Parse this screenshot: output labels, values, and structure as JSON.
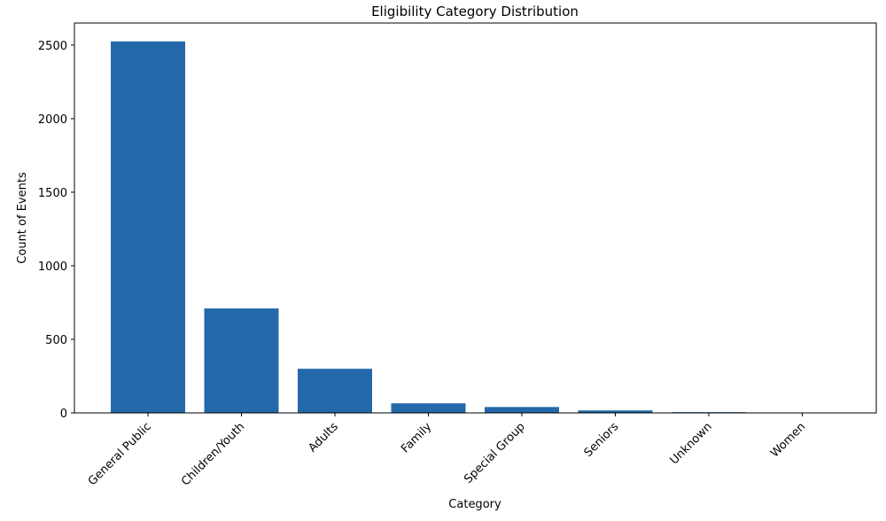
{
  "chart_data": {
    "type": "bar",
    "title": "Eligibility Category Distribution",
    "xlabel": "Category",
    "ylabel": "Count of Events",
    "categories": [
      "General Public",
      "Children/Youth",
      "Adults",
      "Family",
      "Special Group",
      "Seniors",
      "Unknown",
      "Women"
    ],
    "values": [
      2525,
      710,
      300,
      65,
      40,
      17,
      5,
      1
    ],
    "ylim": [
      0,
      2650
    ],
    "yticks": [
      0,
      500,
      1000,
      1500,
      2000,
      2500
    ],
    "grid": false,
    "bar_color": "#2369aa"
  }
}
